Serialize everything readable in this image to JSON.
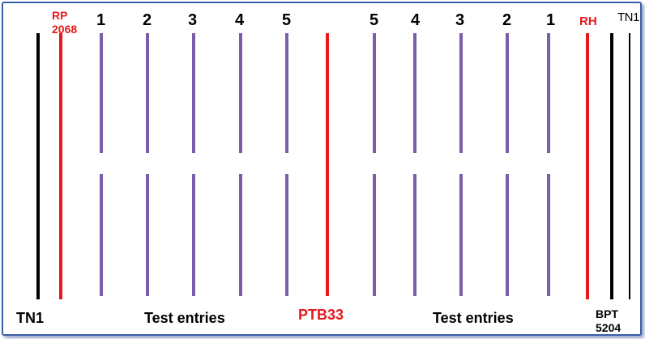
{
  "colors": {
    "border": "#3a5da8",
    "check": "#000000",
    "resistant": "#e8191c",
    "test_entry": "#7a5fa8"
  },
  "labels": {
    "tn1_left": "TN1",
    "rp2068_line1": "RP",
    "rp2068_line2": "2068",
    "test_entries_left": "Test entries",
    "ptb33": "PTB33",
    "test_entries_right": "Test entries",
    "rh": "RH",
    "tn1_right": "TN1",
    "bpt_line1": "BPT",
    "bpt_line2": "5204"
  },
  "numbers": {
    "left": [
      "1",
      "2",
      "3",
      "4",
      "5"
    ],
    "right": [
      "5",
      "4",
      "3",
      "2",
      "1"
    ]
  }
}
